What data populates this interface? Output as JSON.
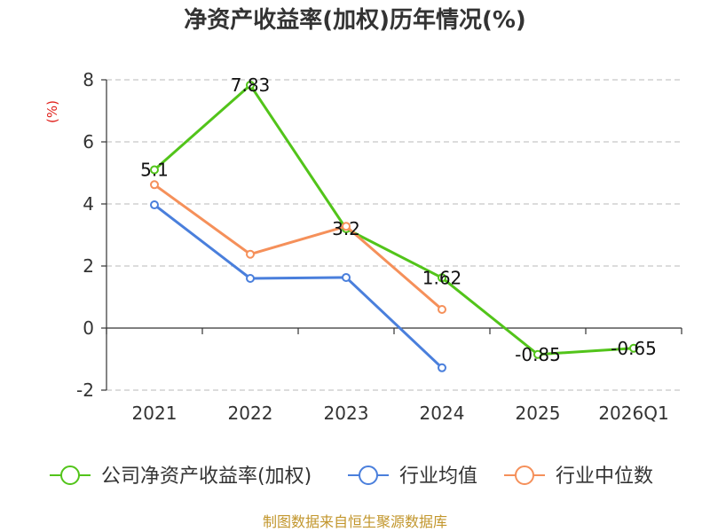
{
  "chart_data": {
    "type": "line",
    "title": "净资产收益率(加权)历年情况(%)",
    "ylabel": "(%)",
    "xlabel": "",
    "categories": [
      "2021",
      "2022",
      "2023",
      "2024",
      "2025",
      "2026Q1"
    ],
    "ylim": [
      -2,
      8
    ],
    "yticks": [
      -2,
      0,
      2,
      4,
      6,
      8
    ],
    "grid": true,
    "legend_position": "bottom",
    "series": [
      {
        "name": "公司净资产收益率(加权)",
        "color": "#52c41a",
        "values": [
          5.1,
          7.83,
          3.2,
          1.62,
          -0.85,
          -0.65
        ],
        "labels": [
          "5.1",
          "7.83",
          "3.2",
          "1.62",
          "-0.85",
          "-0.65"
        ]
      },
      {
        "name": "行业均值",
        "color": "#4a7fdc",
        "values": [
          3.97,
          1.6,
          1.63,
          -1.28,
          null,
          null
        ]
      },
      {
        "name": "行业中位数",
        "color": "#f5905a",
        "values": [
          4.62,
          2.38,
          3.28,
          0.6,
          null,
          null
        ]
      }
    ],
    "source": "制图数据来自恒生聚源数据库"
  }
}
